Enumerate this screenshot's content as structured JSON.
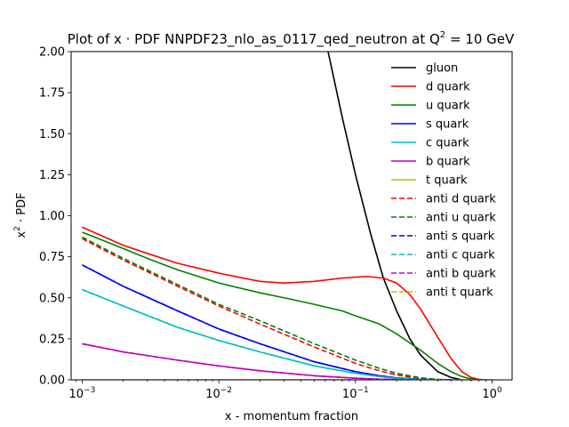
{
  "chart_data": {
    "type": "line",
    "title": "Plot of x · PDF NNPDF23_nlo_as_0117_qed_neutron at Q",
    "title_sup": "2",
    "title_suffix": " = 10 GeV",
    "xlabel": "x - momentum fraction",
    "ylabel_prefix": "x",
    "ylabel_sup": "2",
    "ylabel_suffix": " · PDF",
    "xscale": "log",
    "xlim": [
      0.00083,
      1.4
    ],
    "ylim": [
      0,
      2
    ],
    "x_ticks": [
      {
        "value": 0.001,
        "base": "10",
        "exp": "−3"
      },
      {
        "value": 0.01,
        "base": "10",
        "exp": "−2"
      },
      {
        "value": 0.1,
        "base": "10",
        "exp": "−1"
      },
      {
        "value": 1,
        "base": "10",
        "exp": "0"
      }
    ],
    "y_ticks": [
      "0.00",
      "0.25",
      "0.50",
      "0.75",
      "1.00",
      "1.25",
      "1.50",
      "1.75",
      "2.00"
    ],
    "legend_position": "top-right",
    "grid": false,
    "series": [
      {
        "name": "gluon",
        "color": "#000000",
        "dash": "solid",
        "x": [
          0.063,
          0.08,
          0.1,
          0.13,
          0.16,
          0.2,
          0.25,
          0.3,
          0.4,
          0.5,
          0.6
        ],
        "y": [
          2.0,
          1.6,
          1.25,
          0.88,
          0.62,
          0.42,
          0.25,
          0.15,
          0.05,
          0.015,
          0.0
        ]
      },
      {
        "name": "d quark",
        "color": "#ff0000",
        "dash": "solid",
        "x": [
          0.001,
          0.002,
          0.003,
          0.005,
          0.01,
          0.02,
          0.03,
          0.05,
          0.08,
          0.12,
          0.16,
          0.2,
          0.25,
          0.3,
          0.4,
          0.5,
          0.6,
          0.7,
          0.8,
          0.9
        ],
        "y": [
          0.93,
          0.82,
          0.77,
          0.71,
          0.65,
          0.6,
          0.59,
          0.6,
          0.62,
          0.63,
          0.62,
          0.59,
          0.52,
          0.43,
          0.26,
          0.13,
          0.05,
          0.015,
          0.003,
          0.0
        ]
      },
      {
        "name": "u quark",
        "color": "#008000",
        "dash": "solid",
        "x": [
          0.001,
          0.002,
          0.003,
          0.005,
          0.01,
          0.02,
          0.03,
          0.05,
          0.08,
          0.1,
          0.15,
          0.2,
          0.3,
          0.4,
          0.5,
          0.6,
          0.7,
          0.8,
          0.9
        ],
        "y": [
          0.9,
          0.8,
          0.74,
          0.67,
          0.59,
          0.53,
          0.5,
          0.46,
          0.42,
          0.39,
          0.34,
          0.28,
          0.18,
          0.1,
          0.05,
          0.02,
          0.006,
          0.001,
          0.0
        ]
      },
      {
        "name": "s quark",
        "color": "#0000ff",
        "dash": "solid",
        "x": [
          0.001,
          0.002,
          0.005,
          0.01,
          0.02,
          0.05,
          0.1,
          0.15,
          0.2,
          0.3,
          0.5
        ],
        "y": [
          0.7,
          0.57,
          0.42,
          0.31,
          0.22,
          0.11,
          0.05,
          0.025,
          0.012,
          0.003,
          0.0
        ]
      },
      {
        "name": "c quark",
        "color": "#00bfbf",
        "dash": "solid",
        "x": [
          0.001,
          0.002,
          0.005,
          0.01,
          0.02,
          0.05,
          0.1,
          0.15,
          0.2,
          0.3,
          0.5
        ],
        "y": [
          0.55,
          0.45,
          0.32,
          0.24,
          0.17,
          0.085,
          0.04,
          0.02,
          0.01,
          0.002,
          0.0
        ]
      },
      {
        "name": "b quark",
        "color": "#bf00bf",
        "dash": "solid",
        "x": [
          0.001,
          0.002,
          0.005,
          0.01,
          0.02,
          0.05,
          0.1,
          0.15,
          0.2,
          0.3
        ],
        "y": [
          0.22,
          0.17,
          0.12,
          0.085,
          0.055,
          0.025,
          0.01,
          0.004,
          0.002,
          0.0
        ]
      },
      {
        "name": "t quark",
        "color": "#bfbf00",
        "dash": "solid",
        "x": [
          0.001,
          1.0
        ],
        "y": [
          0.0,
          0.0
        ]
      },
      {
        "name": "anti d quark",
        "color": "#ff0000",
        "dash": "dashed",
        "x": [
          0.001,
          0.002,
          0.005,
          0.01,
          0.02,
          0.05,
          0.1,
          0.15,
          0.2,
          0.3,
          0.4,
          0.5
        ],
        "y": [
          0.86,
          0.73,
          0.57,
          0.45,
          0.34,
          0.2,
          0.1,
          0.055,
          0.03,
          0.008,
          0.002,
          0.0
        ]
      },
      {
        "name": "anti u quark",
        "color": "#008000",
        "dash": "dashed",
        "x": [
          0.001,
          0.002,
          0.005,
          0.01,
          0.02,
          0.05,
          0.1,
          0.15,
          0.2,
          0.3,
          0.4,
          0.5
        ],
        "y": [
          0.87,
          0.74,
          0.58,
          0.46,
          0.36,
          0.22,
          0.12,
          0.07,
          0.04,
          0.012,
          0.003,
          0.0
        ]
      },
      {
        "name": "anti s quark",
        "color": "#0000ff",
        "dash": "dashed",
        "x": [
          0.001,
          0.002,
          0.005,
          0.01,
          0.02,
          0.05,
          0.1,
          0.15,
          0.2,
          0.3,
          0.5
        ],
        "y": [
          0.7,
          0.57,
          0.42,
          0.31,
          0.22,
          0.11,
          0.05,
          0.025,
          0.012,
          0.003,
          0.0
        ]
      },
      {
        "name": "anti c quark",
        "color": "#00bfbf",
        "dash": "dashed",
        "x": [
          0.001,
          0.002,
          0.005,
          0.01,
          0.02,
          0.05,
          0.1,
          0.15,
          0.2,
          0.3,
          0.5
        ],
        "y": [
          0.55,
          0.45,
          0.32,
          0.24,
          0.17,
          0.085,
          0.04,
          0.02,
          0.01,
          0.002,
          0.0
        ]
      },
      {
        "name": "anti b quark",
        "color": "#bf00bf",
        "dash": "dashed",
        "x": [
          0.001,
          0.002,
          0.005,
          0.01,
          0.02,
          0.05,
          0.1,
          0.15,
          0.2,
          0.3
        ],
        "y": [
          0.22,
          0.17,
          0.12,
          0.085,
          0.055,
          0.025,
          0.01,
          0.004,
          0.002,
          0.0
        ]
      },
      {
        "name": "anti t quark",
        "color": "#bfbf00",
        "dash": "dashed",
        "x": [
          0.001,
          1.0
        ],
        "y": [
          0.0,
          0.0
        ]
      }
    ]
  }
}
